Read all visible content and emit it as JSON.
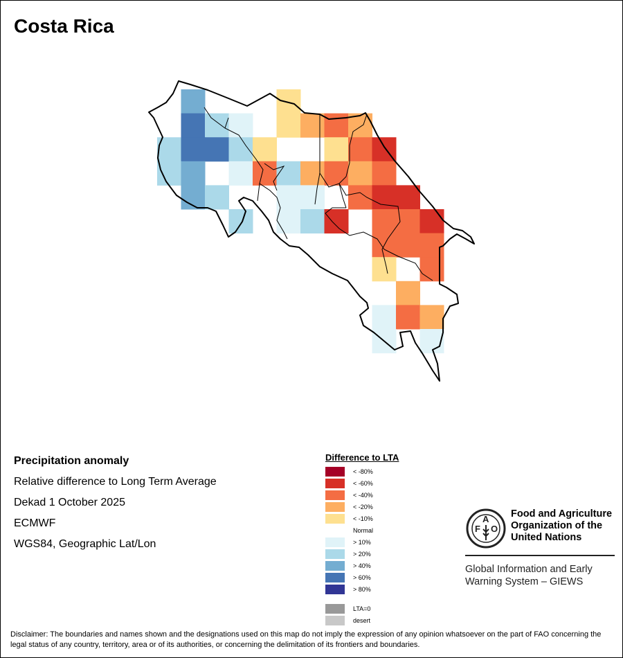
{
  "title": "Costa Rica",
  "info": {
    "heading": "Precipitation anomaly",
    "lines": [
      "Relative difference to Long Term Average",
      "Dekad 1 October 2025",
      "ECMWF",
      "WGS84, Geographic Lat/Lon"
    ]
  },
  "legend": {
    "title": "Difference to LTA",
    "items": [
      {
        "key": "R80",
        "label": "< -80%",
        "color": "#a50026"
      },
      {
        "key": "R",
        "label": "< -60%",
        "color": "#d73027"
      },
      {
        "key": "r",
        "label": "< -40%",
        "color": "#f46d43"
      },
      {
        "key": "o",
        "label": "< -20%",
        "color": "#fdae61"
      },
      {
        "key": "y",
        "label": "< -10%",
        "color": "#fee090"
      },
      {
        "key": "N",
        "label": "Normal",
        "color": "#ffffff"
      },
      {
        "key": "l",
        "label": "> 10%",
        "color": "#e0f3f8"
      },
      {
        "key": "s",
        "label": "> 20%",
        "color": "#abd9e9"
      },
      {
        "key": "m",
        "label": "> 40%",
        "color": "#74add1"
      },
      {
        "key": "d",
        "label": "> 60%",
        "color": "#4575b4"
      },
      {
        "key": "D",
        "label": "> 80%",
        "color": "#313695"
      }
    ],
    "extra": [
      {
        "label": "LTA=0",
        "color": "#999999"
      },
      {
        "label": "desert",
        "color": "#c8c8c8"
      }
    ]
  },
  "grid": [
    ".m...y......",
    ".dslNyoro...",
    "sddsyNNyrR..",
    "smNlrsoror..",
    ".msNNllNrRR.",
    "...s.lsRNrrR",
    ".........rrr",
    ".........yNr",
    "..........o.",
    ".........lro",
    ".........l.l"
  ],
  "fao": {
    "logo_letters": [
      "F",
      "A",
      "O"
    ],
    "logo_motto": "FIAT PANIS",
    "name_lines": [
      "Food and Agriculture",
      "Organization of the",
      "United Nations"
    ],
    "giews_lines": [
      "Global Information and Early",
      "Warning System – GIEWS"
    ]
  },
  "disclaimer": "Disclaimer: The boundaries and names shown and the designations used on this map do not imply the expression of any opinion whatsoever on the part of FAO concerning the legal status of any country, territory, area or of its authorities, or concerning the delimitation of its frontiers and boundaries."
}
